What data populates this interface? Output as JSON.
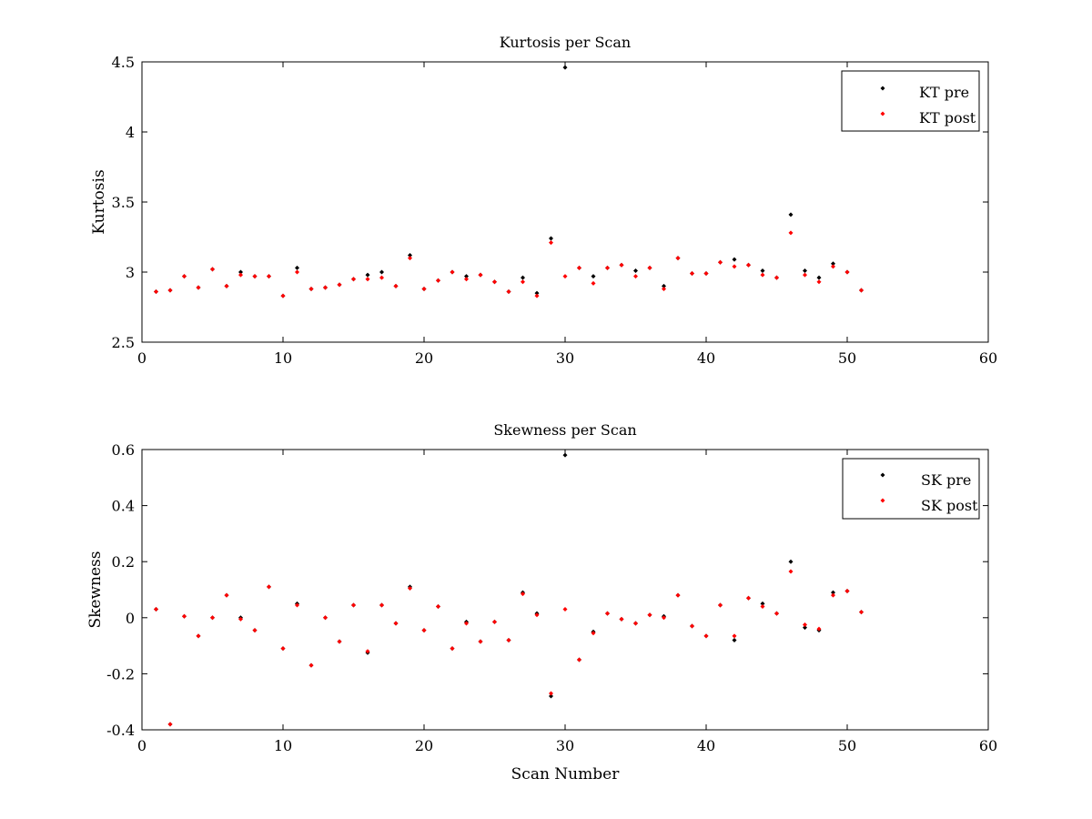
{
  "colors": {
    "pre": "#000000",
    "post": "#ff0000",
    "axes": "#000000",
    "background": "#ffffff"
  },
  "chart_data": [
    {
      "type": "scatter",
      "title": "Kurtosis per Scan",
      "xlabel": "",
      "ylabel": "Kurtosis",
      "xlim": [
        0,
        60
      ],
      "ylim": [
        2.5,
        4.5
      ],
      "xticks": [
        "0",
        "10",
        "20",
        "30",
        "40",
        "50",
        "60"
      ],
      "yticks": [
        "2.5",
        "3",
        "3.5",
        "4",
        "4.5"
      ],
      "grid": false,
      "legend": "top-right",
      "x": [
        1,
        2,
        3,
        4,
        5,
        6,
        7,
        8,
        9,
        10,
        11,
        12,
        13,
        14,
        15,
        16,
        17,
        18,
        19,
        20,
        21,
        22,
        23,
        24,
        25,
        26,
        27,
        28,
        29,
        30,
        31,
        32,
        33,
        34,
        35,
        36,
        37,
        38,
        39,
        40,
        41,
        42,
        43,
        44,
        45,
        46,
        47,
        48,
        49,
        50,
        51
      ],
      "series": [
        {
          "name": "KT pre",
          "color": "#000000",
          "values": [
            2.86,
            2.87,
            2.97,
            2.89,
            3.02,
            2.9,
            3.0,
            2.97,
            2.97,
            2.83,
            3.03,
            2.88,
            2.89,
            2.91,
            2.95,
            2.98,
            3.0,
            2.9,
            3.12,
            2.88,
            2.94,
            3.0,
            2.97,
            2.98,
            2.93,
            2.86,
            2.96,
            2.85,
            3.24,
            4.46,
            3.03,
            2.97,
            3.03,
            3.05,
            3.01,
            3.03,
            2.9,
            3.1,
            2.99,
            2.99,
            3.07,
            3.09,
            3.05,
            3.01,
            2.96,
            3.41,
            3.01,
            2.96,
            3.06,
            3.0,
            2.87
          ]
        },
        {
          "name": "KT post",
          "color": "#ff0000",
          "values": [
            2.86,
            2.87,
            2.97,
            2.89,
            3.02,
            2.9,
            2.98,
            2.97,
            2.97,
            2.83,
            3.0,
            2.88,
            2.89,
            2.91,
            2.95,
            2.95,
            2.96,
            2.9,
            3.1,
            2.88,
            2.94,
            3.0,
            2.95,
            2.98,
            2.93,
            2.86,
            2.93,
            2.83,
            3.21,
            2.97,
            3.03,
            2.92,
            3.03,
            3.05,
            2.97,
            3.03,
            2.88,
            3.1,
            2.99,
            2.99,
            3.07,
            3.04,
            3.05,
            2.98,
            2.96,
            3.28,
            2.98,
            2.93,
            3.04,
            3.0,
            2.87
          ]
        }
      ]
    },
    {
      "type": "scatter",
      "title": "Skewness per Scan",
      "xlabel": "Scan Number",
      "ylabel": "Skewness",
      "xlim": [
        0,
        60
      ],
      "ylim": [
        -0.4,
        0.6
      ],
      "xticks": [
        "0",
        "10",
        "20",
        "30",
        "40",
        "50",
        "60"
      ],
      "yticks": [
        "-0.4",
        "-0.2",
        "0",
        "0.2",
        "0.4",
        "0.6"
      ],
      "grid": false,
      "legend": "top-right",
      "x": [
        1,
        2,
        3,
        4,
        5,
        6,
        7,
        8,
        9,
        10,
        11,
        12,
        13,
        14,
        15,
        16,
        17,
        18,
        19,
        20,
        21,
        22,
        23,
        24,
        25,
        26,
        27,
        28,
        29,
        30,
        31,
        32,
        33,
        34,
        35,
        36,
        37,
        38,
        39,
        40,
        41,
        42,
        43,
        44,
        45,
        46,
        47,
        48,
        49,
        50,
        51
      ],
      "series": [
        {
          "name": "SK pre",
          "color": "#000000",
          "values": [
            0.03,
            -0.38,
            0.005,
            -0.065,
            0.0,
            0.08,
            0.0,
            -0.045,
            0.11,
            -0.11,
            0.05,
            -0.17,
            0.0,
            -0.085,
            0.045,
            -0.125,
            0.045,
            -0.02,
            0.11,
            -0.045,
            0.04,
            -0.11,
            -0.015,
            -0.085,
            -0.015,
            -0.08,
            0.09,
            0.015,
            -0.28,
            0.58,
            -0.15,
            -0.05,
            0.015,
            -0.005,
            -0.02,
            0.01,
            0.005,
            0.08,
            -0.03,
            -0.065,
            0.045,
            -0.08,
            0.07,
            0.05,
            0.015,
            0.2,
            -0.035,
            -0.045,
            0.09,
            0.095,
            0.02
          ]
        },
        {
          "name": "SK post",
          "color": "#ff0000",
          "values": [
            0.03,
            -0.38,
            0.005,
            -0.065,
            0.0,
            0.08,
            -0.005,
            -0.045,
            0.11,
            -0.11,
            0.045,
            -0.17,
            0.0,
            -0.085,
            0.045,
            -0.12,
            0.045,
            -0.02,
            0.105,
            -0.045,
            0.04,
            -0.11,
            -0.02,
            -0.085,
            -0.015,
            -0.08,
            0.085,
            0.01,
            -0.27,
            0.03,
            -0.15,
            -0.055,
            0.015,
            -0.005,
            -0.02,
            0.01,
            0.0,
            0.08,
            -0.03,
            -0.065,
            0.045,
            -0.065,
            0.07,
            0.04,
            0.015,
            0.165,
            -0.025,
            -0.04,
            0.08,
            0.095,
            0.02
          ]
        }
      ]
    }
  ]
}
